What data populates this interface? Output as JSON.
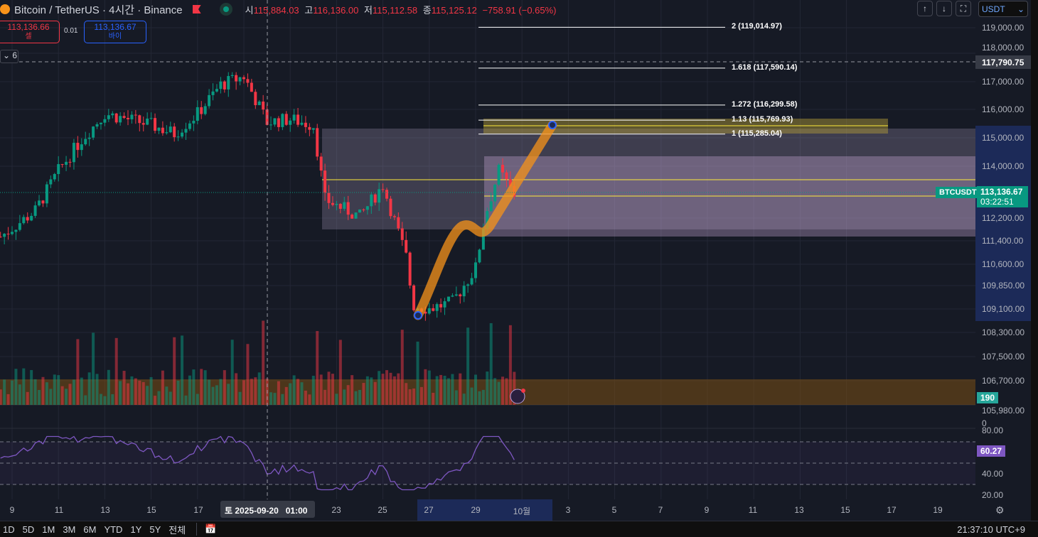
{
  "header": {
    "title": "Bitcoin / TetherUS · 4시간 · Binance",
    "ohlc": [
      {
        "k": "시",
        "v": "115,884.03"
      },
      {
        "k": "고",
        "v": "116,136.00"
      },
      {
        "k": "저",
        "v": "115,112.58"
      },
      {
        "k": "종",
        "v": "115,125.12"
      }
    ],
    "change": "−758.91 (−0.65%)"
  },
  "trade": {
    "sell_price": "113,136.66",
    "sell_label": "셀",
    "spread": "0.01",
    "buy_price": "113,136.67",
    "buy_label": "바이"
  },
  "indicators_count": "6",
  "toolbar": {
    "currency": "USDT",
    "buttons": [
      "arrow-up-icon",
      "arrow-down-icon",
      "fullscreen-icon"
    ]
  },
  "price_axis": {
    "ticks": [
      "119,000.00",
      "118,000.00",
      "117,000.00",
      "116,000.00",
      "115,000.00",
      "114,000.00",
      "112,200.00",
      "111,400.00",
      "110,600.00",
      "109,850.00",
      "109,100.00",
      "108,300.00",
      "107,500.00",
      "106,700.00",
      "105,980.00"
    ],
    "crosshair_price": "117,790.75",
    "last_price": "113,136.67",
    "countdown": "03:22:51",
    "symbol_tag": "BTCUSDT",
    "volume_tag": "190",
    "volume_zero": "0"
  },
  "fib_levels": [
    {
      "label": "2 (119,014.97)",
      "price": 119014.97
    },
    {
      "label": "1.618 (117,590.14)",
      "price": 117590.14
    },
    {
      "label": "1.272 (116,299.58)",
      "price": 116299.58
    },
    {
      "label": "1.13 (115,769.93)",
      "price": 115769.93
    },
    {
      "label": "1 (115,285.04)",
      "price": 115285.04
    }
  ],
  "rsi": {
    "value": "60.27",
    "ticks": [
      "80.00",
      "40.00",
      "20.00"
    ]
  },
  "time_axis": {
    "ticks": [
      "9",
      "11",
      "13",
      "15",
      "17",
      "23",
      "25",
      "27",
      "29",
      "10월",
      "3",
      "5",
      "7",
      "9",
      "11",
      "13",
      "15",
      "17",
      "19"
    ],
    "crosshair_time": "토 2025-09-20   01:00"
  },
  "ranges": [
    "1D",
    "5D",
    "1M",
    "3M",
    "6M",
    "YTD",
    "1Y",
    "5Y",
    "전체"
  ],
  "clock": "21:37:10 UTC+9",
  "colors": {
    "up": "#089981",
    "down": "#f23645",
    "accent": "#2962ff",
    "rsi": "#7e57c2",
    "projection": "#f7931a"
  },
  "chart_data": {
    "type": "candlestick",
    "price_path": [
      [
        9,
        112000
      ],
      [
        10,
        112600
      ],
      [
        11,
        114000
      ],
      [
        12,
        115100
      ],
      [
        13,
        116000
      ],
      [
        14,
        115800
      ],
      [
        15,
        115600
      ],
      [
        16,
        115300
      ],
      [
        17,
        116000
      ],
      [
        18,
        117000
      ],
      [
        19,
        117300
      ],
      [
        20,
        115700
      ],
      [
        21,
        115800
      ],
      [
        22,
        115600
      ],
      [
        22.5,
        113000
      ],
      [
        23,
        112800
      ],
      [
        24,
        112400
      ],
      [
        25,
        113500
      ],
      [
        26,
        111000
      ],
      [
        26.3,
        109300
      ],
      [
        27,
        109200
      ],
      [
        28,
        109400
      ],
      [
        29,
        110600
      ],
      [
        29.4,
        112400
      ],
      [
        30,
        114000
      ],
      [
        30.7,
        113136
      ]
    ]
  }
}
